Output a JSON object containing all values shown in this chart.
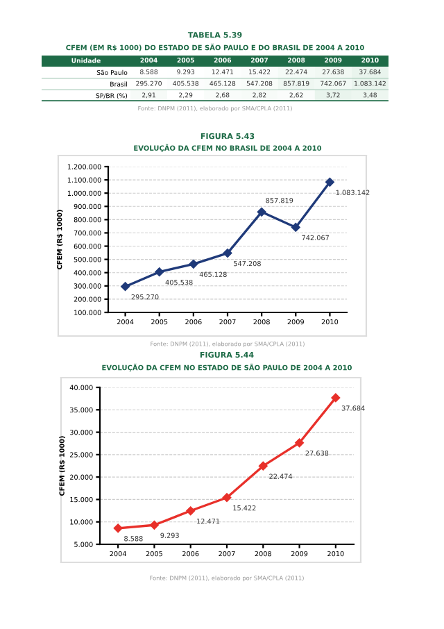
{
  "chart_data": [
    {
      "type": "heatmap",
      "title": "TABELA 5.39",
      "subtitle": "CFEM (EM R$ 1000) DO ESTADO DE SÃO PAULO E DO BRASIL DE 2004 A 2010",
      "ylabel": "Unidade",
      "categories": [
        "2004",
        "2005",
        "2006",
        "2007",
        "2008",
        "2009",
        "2010"
      ],
      "y_categories": [
        "São Paulo",
        "Brasil",
        "SP/BR (%)"
      ],
      "cells": [
        [
          8588,
          9293,
          12471,
          15422,
          22474,
          27638,
          37684
        ],
        [
          295270,
          405538,
          465128,
          547208,
          857819,
          742067,
          1083142
        ],
        [
          2.91,
          2.29,
          2.68,
          2.82,
          2.62,
          3.72,
          3.48
        ]
      ],
      "cell_labels": [
        [
          "8.588",
          "9.293",
          "12.471",
          "15.422",
          "22.474",
          "27.638",
          "37.684"
        ],
        [
          "295.270",
          "405.538",
          "465.128",
          "547.208",
          "857.819",
          "742.067",
          "1.083.142"
        ],
        [
          "2,91",
          "2,29",
          "2,68",
          "2,82",
          "2,62",
          "3,72",
          "3,48"
        ]
      ],
      "annotations": [
        "Fonte: DNPM (2011), elaborado por SMA/CPLA (2011)"
      ]
    },
    {
      "type": "line",
      "title": "FIGURA 5.43",
      "subtitle": "EVOLUÇÃO DA CFEM NO BRASIL DE 2004 A 2010",
      "ylabel": "CFEM (R$ 1000)",
      "categories": [
        "2004",
        "2005",
        "2006",
        "2007",
        "2008",
        "2009",
        "2010"
      ],
      "series": [
        {
          "color": "#1f3a7a",
          "values": [
            295270,
            405538,
            465128,
            547208,
            857819,
            742067,
            1083142
          ],
          "value_labels": [
            "295.270",
            "405.538",
            "465.128",
            "547.208",
            "857.819",
            "742.067",
            "1.083.142"
          ]
        }
      ],
      "ylim": [
        100000,
        1200000
      ],
      "yticks": [
        {
          "value": 100000,
          "label": "100.000"
        },
        {
          "value": 200000,
          "label": "200.000"
        },
        {
          "value": 300000,
          "label": "300.000"
        },
        {
          "value": 400000,
          "label": "400.000"
        },
        {
          "value": 500000,
          "label": "500.000"
        },
        {
          "value": 600000,
          "label": "600.000"
        },
        {
          "value": 700000,
          "label": "700.000"
        },
        {
          "value": 800000,
          "label": "800.000"
        },
        {
          "value": 900000,
          "label": "900.000"
        },
        {
          "value": 1000000,
          "label": "1.000.000"
        },
        {
          "value": 1100000,
          "label": "1.100.000"
        },
        {
          "value": 1200000,
          "label": "1.200.000"
        }
      ],
      "grid": "y",
      "marker": "diamond",
      "line_style": "solid",
      "annotations": [
        "Fonte: DNPM (2011), elaborado por SMA/CPLA (2011)"
      ]
    },
    {
      "type": "line",
      "title": "FIGURA 5.44",
      "subtitle": "EVOLUÇÃO DA CFEM NO ESTADO DE SÃO PAULO DE 2004 A 2010",
      "ylabel": "CFEM (R$ 1000)",
      "categories": [
        "2004",
        "2005",
        "2006",
        "2007",
        "2008",
        "2009",
        "2010"
      ],
      "series": [
        {
          "color": "#e8302a",
          "values": [
            8588,
            9293,
            12471,
            15422,
            22474,
            27638,
            37684
          ],
          "value_labels": [
            "8.588",
            "9.293",
            "12.471",
            "15.422",
            "22.474",
            "27.638",
            "37.684"
          ]
        }
      ],
      "ylim": [
        5000,
        40000
      ],
      "yticks": [
        {
          "value": 5000,
          "label": "5.000"
        },
        {
          "value": 10000,
          "label": "10.000"
        },
        {
          "value": 15000,
          "label": "15.000"
        },
        {
          "value": 20000,
          "label": "20.000"
        },
        {
          "value": 25000,
          "label": "25.000"
        },
        {
          "value": 30000,
          "label": "30.000"
        },
        {
          "value": 35000,
          "label": "35.000"
        },
        {
          "value": 40000,
          "label": "40.000"
        }
      ],
      "grid": "y",
      "marker": "diamond",
      "line_style": "solid",
      "annotations": [
        "Fonte: DNPM (2011), elaborado por SMA/CPLA (2011)"
      ]
    }
  ]
}
